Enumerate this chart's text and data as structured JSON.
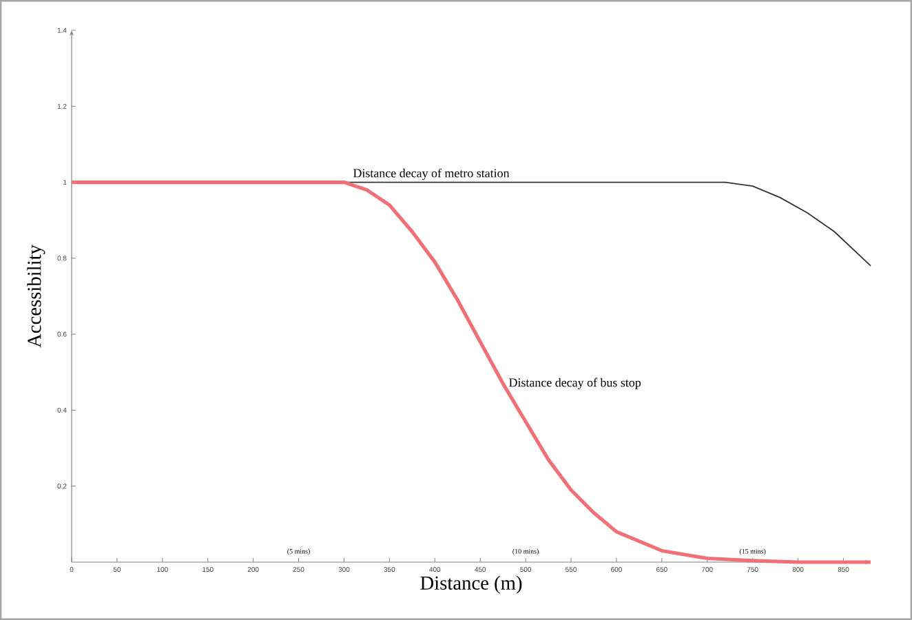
{
  "chart_data": {
    "type": "line",
    "xlabel": "Distance (m)",
    "ylabel": "Accessibility",
    "xlim": [
      0,
      880
    ],
    "ylim": [
      0,
      1.4
    ],
    "xticks": [
      0,
      50,
      100,
      150,
      200,
      250,
      300,
      350,
      400,
      450,
      500,
      550,
      600,
      650,
      700,
      750,
      800,
      850
    ],
    "yticks": [
      0.2,
      0.4,
      0.6,
      0.8,
      1,
      1.2,
      1.4
    ],
    "series": [
      {
        "name": "Distance decay of metro station",
        "color": "#333333",
        "x": [
          0,
          700,
          720,
          750,
          780,
          810,
          840,
          880
        ],
        "values": [
          1,
          1,
          1,
          0.99,
          0.96,
          0.92,
          0.87,
          0.78
        ]
      },
      {
        "name": "Distance decay of bus stop",
        "color": "#f07078",
        "x": [
          0,
          250,
          300,
          325,
          350,
          375,
          400,
          425,
          450,
          475,
          500,
          525,
          550,
          575,
          600,
          650,
          700,
          750,
          800,
          880
        ],
        "values": [
          1,
          1,
          1,
          0.98,
          0.94,
          0.87,
          0.79,
          0.69,
          0.58,
          0.47,
          0.37,
          0.27,
          0.19,
          0.13,
          0.08,
          0.03,
          0.01,
          0.004,
          0,
          0
        ]
      }
    ],
    "annotations": [
      "(5 mins)",
      "(10 mins)",
      "(15 mins)"
    ],
    "grid": false,
    "legend": false,
    "marker": "none",
    "line_style": "solid"
  }
}
